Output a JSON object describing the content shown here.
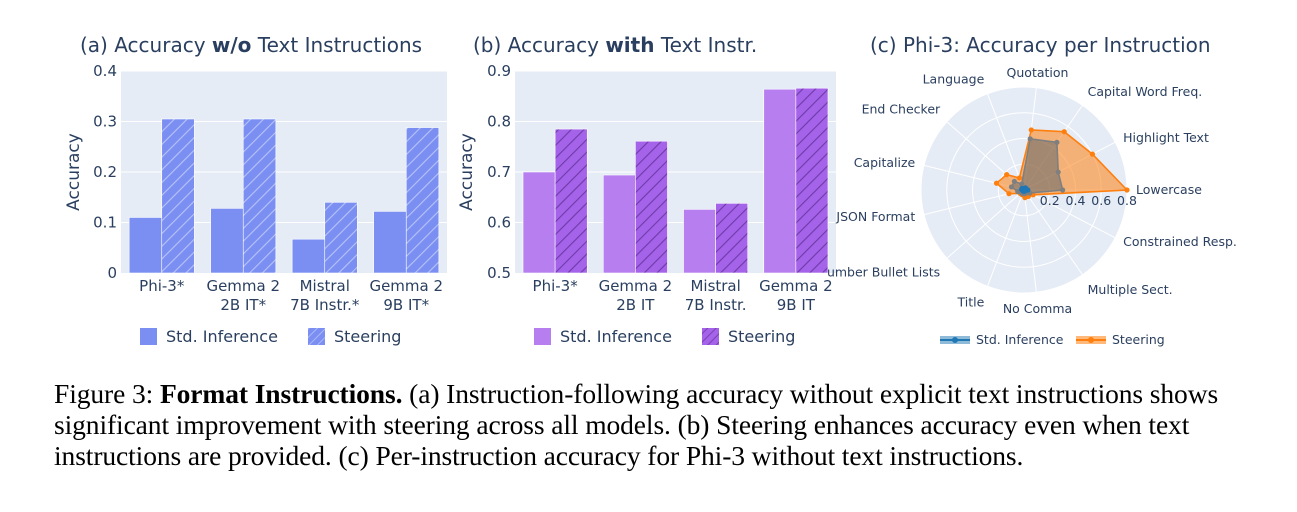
{
  "chart_data": [
    {
      "type": "bar",
      "title_prefix": "(a) Accuracy ",
      "title_bold": "w/o",
      "title_suffix": " Text Instructions",
      "ylabel": "Accuracy",
      "ylim": [
        0,
        0.4
      ],
      "yticks": [
        0,
        0.1,
        0.2,
        0.3,
        0.4
      ],
      "ytick_labels": [
        "0",
        "0.1",
        "0.2",
        "0.3",
        "0.4"
      ],
      "categories": [
        [
          "Phi-3*"
        ],
        [
          "Gemma 2",
          "2B IT*"
        ],
        [
          "Mistral",
          "7B Instr.*"
        ],
        [
          "Gemma 2",
          "9B IT*"
        ]
      ],
      "series": [
        {
          "name": "Std. Inference",
          "values": [
            0.11,
            0.128,
            0.067,
            0.122
          ],
          "color": "#7b8ff2",
          "hatch": false
        },
        {
          "name": "Steering",
          "values": [
            0.305,
            0.305,
            0.14,
            0.288
          ],
          "color": "#7b8ff2",
          "hatch": true
        }
      ]
    },
    {
      "type": "bar",
      "title_prefix": "(b) Accuracy ",
      "title_bold": "with",
      "title_suffix": " Text Instr.",
      "ylabel": "Accuracy",
      "ylim": [
        0.5,
        0.9
      ],
      "yticks": [
        0.5,
        0.6,
        0.7,
        0.8,
        0.9
      ],
      "ytick_labels": [
        "0.5",
        "0.6",
        "0.7",
        "0.8",
        "0.9"
      ],
      "categories": [
        [
          "Phi-3*"
        ],
        [
          "Gemma 2",
          "2B IT"
        ],
        [
          "Mistral",
          "7B Instr."
        ],
        [
          "Gemma 2",
          "9B IT"
        ]
      ],
      "series": [
        {
          "name": "Std. Inference",
          "values": [
            0.7,
            0.694,
            0.626,
            0.864
          ],
          "color": "#b77ef0",
          "hatch": false
        },
        {
          "name": "Steering",
          "values": [
            0.785,
            0.761,
            0.638,
            0.866
          ],
          "color": "#b77ef0",
          "hatch": true
        }
      ]
    },
    {
      "type": "radar",
      "title": "(c) Phi-3: Accuracy per Instruction",
      "categories": [
        "Lowercase",
        "Highlight Text",
        "Capital Word Freq.",
        "Quotation",
        "Language",
        "End Checker",
        "Capitalize",
        "JSON Format",
        "Number Bullet Lists",
        "Title",
        "No Comma",
        "Multiple Sect.",
        "Constrained Resp."
      ],
      "label_display": [
        "Lowercase",
        "Highlight Text",
        "Capital Word Freq.",
        "Quotation",
        "Language",
        "End Checker",
        "Capitalize",
        "JSON Format",
        "umber Bullet Lists",
        "Title",
        "No Comma",
        "Multiple Sect.",
        "Constrained Resp."
      ],
      "rlim": [
        0,
        0.8
      ],
      "rticks": [
        0.2,
        0.4,
        0.6,
        0.8
      ],
      "rtick_labels": [
        "0.2",
        "0.4",
        "0.6",
        "0.8"
      ],
      "series": [
        {
          "name": "Std. Inference",
          "values": [
            0.03,
            0.02,
            0.02,
            0.01,
            0.01,
            0.02,
            0.02,
            0.01,
            0.01,
            0.01,
            0.01,
            0.01,
            0.01
          ],
          "color": "#1f77b4"
        },
        {
          "name": "Steering",
          "values": [
            0.8,
            0.6,
            0.55,
            0.47,
            0.1,
            0.18,
            0.22,
            0.12,
            0.04,
            0.04,
            0.06,
            0.06,
            0.08
          ],
          "color": "#ff7f0e"
        },
        {
          "name": "",
          "values": [
            0.3,
            0.3,
            0.45,
            0.4,
            0.05,
            0.1,
            0.1,
            0.05,
            0.03,
            0.03,
            0.03,
            0.03,
            0.05
          ],
          "color": "#7f7f7f"
        }
      ],
      "legend": [
        "Std. Inference",
        "Steering"
      ]
    }
  ],
  "caption": {
    "label": "Figure 3: ",
    "bold": "Format Instructions.",
    "text": " (a) Instruction-following accuracy without explicit text instructions shows significant improvement with steering across all models. (b) Steering enhances accuracy even when text instructions are provided. (c) Per-instruction accuracy for Phi-3 without text instructions."
  }
}
